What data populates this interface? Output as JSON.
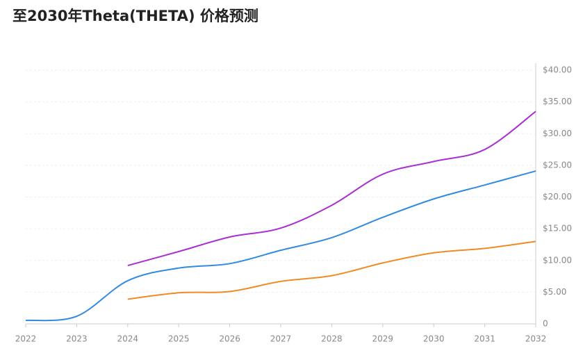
{
  "chart_data": {
    "type": "line",
    "title": "至2030年Theta(THETA) 价格预测",
    "x": [
      2022,
      2023,
      2024,
      2025,
      2026,
      2027,
      2028,
      2029,
      2030,
      2031,
      2032
    ],
    "series": [
      {
        "color": "#2f8ae0",
        "values": [
          0.55,
          1.2,
          6.8,
          8.8,
          9.5,
          11.6,
          13.6,
          16.8,
          19.7,
          21.9,
          24.1
        ]
      },
      {
        "color": "#a92fd0",
        "values": [
          null,
          null,
          9.2,
          11.4,
          13.7,
          15.1,
          18.7,
          23.6,
          25.6,
          27.5,
          33.5
        ]
      },
      {
        "color": "#ef8a25",
        "values": [
          null,
          null,
          3.9,
          4.9,
          5.1,
          6.7,
          7.6,
          9.6,
          11.2,
          11.9,
          13.0
        ]
      }
    ],
    "xlim": [
      2022,
      2032
    ],
    "xticks": [
      2022,
      2023,
      2024,
      2025,
      2026,
      2027,
      2028,
      2029,
      2030,
      2031,
      2032
    ],
    "ylim": [
      0,
      40
    ],
    "yticks": [
      0,
      {
        "value": 5,
        "label": "$5.00"
      },
      {
        "value": 10,
        "label": "$10.00"
      },
      {
        "value": 15,
        "label": "$15.00"
      },
      {
        "value": 20,
        "label": "$20.00"
      },
      {
        "value": 25,
        "label": "$25.00"
      },
      {
        "value": 30,
        "label": "$30.00"
      },
      {
        "value": 35,
        "label": "$35.00"
      },
      {
        "value": 40,
        "label": "$40.00"
      }
    ],
    "grid": true,
    "y_axis_side": "right"
  }
}
